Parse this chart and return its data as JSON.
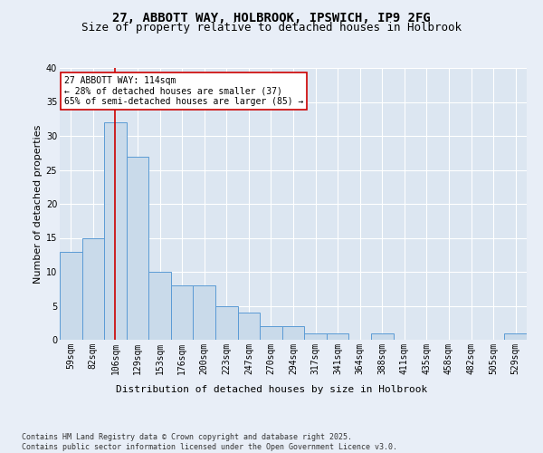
{
  "title_line1": "27, ABBOTT WAY, HOLBROOK, IPSWICH, IP9 2FG",
  "title_line2": "Size of property relative to detached houses in Holbrook",
  "xlabel": "Distribution of detached houses by size in Holbrook",
  "ylabel": "Number of detached properties",
  "categories": [
    "59sqm",
    "82sqm",
    "106sqm",
    "129sqm",
    "153sqm",
    "176sqm",
    "200sqm",
    "223sqm",
    "247sqm",
    "270sqm",
    "294sqm",
    "317sqm",
    "341sqm",
    "364sqm",
    "388sqm",
    "411sqm",
    "435sqm",
    "458sqm",
    "482sqm",
    "505sqm",
    "529sqm"
  ],
  "values": [
    13,
    15,
    32,
    27,
    10,
    8,
    8,
    5,
    4,
    2,
    2,
    1,
    1,
    0,
    1,
    0,
    0,
    0,
    0,
    0,
    1
  ],
  "bar_color": "#c9daea",
  "bar_edge_color": "#5b9bd5",
  "bg_color": "#dce6f1",
  "fig_bg_color": "#e8eef7",
  "annotation_line1": "27 ABBOTT WAY: 114sqm",
  "annotation_line2": "← 28% of detached houses are smaller (37)",
  "annotation_line3": "65% of semi-detached houses are larger (85) →",
  "annotation_box_color": "#ffffff",
  "annotation_box_edge_color": "#cc0000",
  "property_line_x": 2.0,
  "property_line_color": "#cc0000",
  "ylim": [
    0,
    40
  ],
  "yticks": [
    0,
    5,
    10,
    15,
    20,
    25,
    30,
    35,
    40
  ],
  "footer_text": "Contains HM Land Registry data © Crown copyright and database right 2025.\nContains public sector information licensed under the Open Government Licence v3.0.",
  "grid_color": "#ffffff",
  "title_fontsize": 10,
  "subtitle_fontsize": 9,
  "tick_fontsize": 7,
  "label_fontsize": 8,
  "annotation_fontsize": 7,
  "footer_fontsize": 6
}
